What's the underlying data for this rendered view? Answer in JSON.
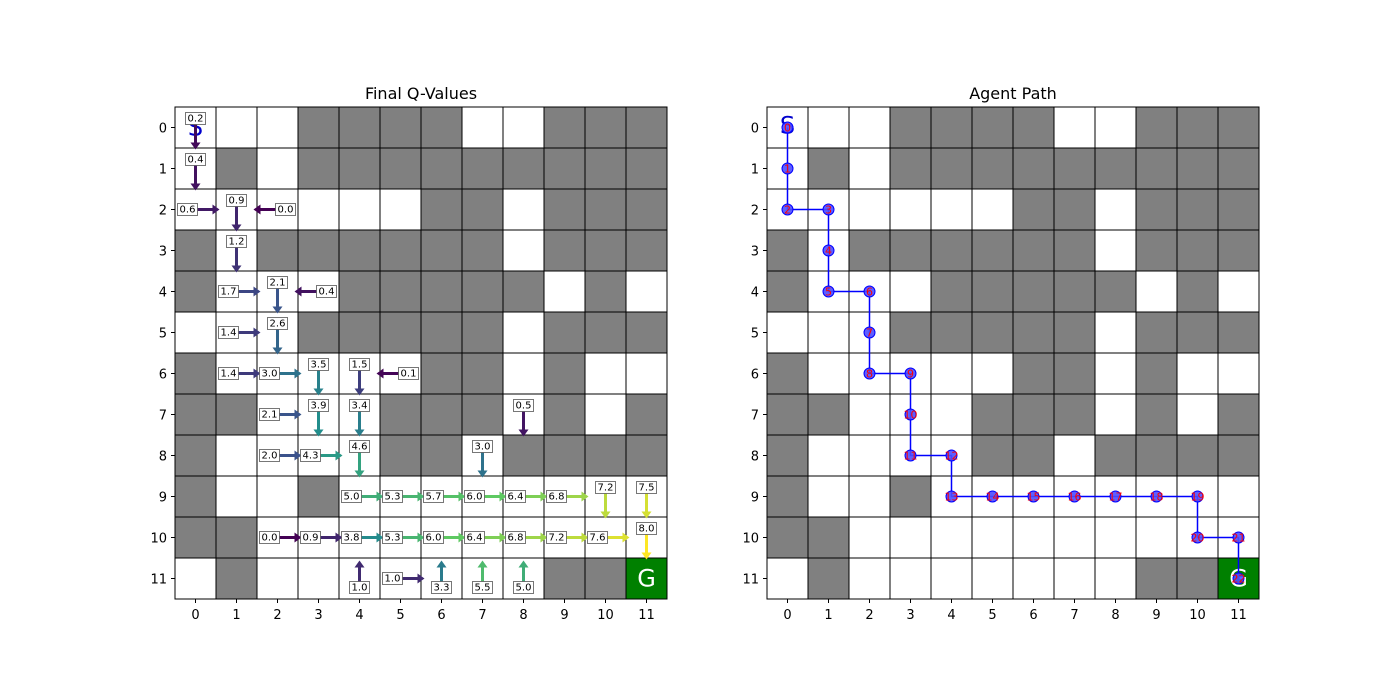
{
  "chart_data": [
    {
      "type": "heatmap",
      "title": "Final Q-Values",
      "xlabel": "",
      "ylabel": "",
      "x_ticks": [
        "0",
        "1",
        "2",
        "3",
        "4",
        "5",
        "6",
        "7",
        "8",
        "9",
        "10",
        "11"
      ],
      "y_ticks": [
        "0",
        "1",
        "2",
        "3",
        "4",
        "5",
        "6",
        "7",
        "8",
        "9",
        "10",
        "11"
      ],
      "grid_rows": 12,
      "grid_cols": 12,
      "walls": [
        [
          0,
          3
        ],
        [
          0,
          4
        ],
        [
          0,
          5
        ],
        [
          0,
          6
        ],
        [
          0,
          9
        ],
        [
          0,
          10
        ],
        [
          0,
          11
        ],
        [
          1,
          1
        ],
        [
          1,
          3
        ],
        [
          1,
          4
        ],
        [
          1,
          5
        ],
        [
          1,
          6
        ],
        [
          1,
          7
        ],
        [
          1,
          8
        ],
        [
          1,
          9
        ],
        [
          1,
          10
        ],
        [
          1,
          11
        ],
        [
          2,
          6
        ],
        [
          2,
          7
        ],
        [
          2,
          9
        ],
        [
          2,
          10
        ],
        [
          2,
          11
        ],
        [
          3,
          0
        ],
        [
          3,
          2
        ],
        [
          3,
          3
        ],
        [
          3,
          4
        ],
        [
          3,
          5
        ],
        [
          3,
          6
        ],
        [
          3,
          7
        ],
        [
          3,
          9
        ],
        [
          3,
          10
        ],
        [
          3,
          11
        ],
        [
          4,
          0
        ],
        [
          4,
          4
        ],
        [
          4,
          5
        ],
        [
          4,
          6
        ],
        [
          4,
          7
        ],
        [
          4,
          8
        ],
        [
          4,
          10
        ],
        [
          5,
          3
        ],
        [
          5,
          4
        ],
        [
          5,
          5
        ],
        [
          5,
          6
        ],
        [
          5,
          7
        ],
        [
          5,
          9
        ],
        [
          5,
          10
        ],
        [
          5,
          11
        ],
        [
          6,
          0
        ],
        [
          6,
          6
        ],
        [
          6,
          7
        ],
        [
          6,
          9
        ],
        [
          7,
          0
        ],
        [
          7,
          1
        ],
        [
          7,
          5
        ],
        [
          7,
          6
        ],
        [
          7,
          7
        ],
        [
          7,
          9
        ],
        [
          7,
          11
        ],
        [
          8,
          0
        ],
        [
          8,
          5
        ],
        [
          8,
          6
        ],
        [
          8,
          8
        ],
        [
          8,
          9
        ],
        [
          8,
          10
        ],
        [
          8,
          11
        ],
        [
          9,
          0
        ],
        [
          9,
          3
        ],
        [
          10,
          0
        ],
        [
          10,
          1
        ],
        [
          11,
          1
        ],
        [
          11,
          9
        ],
        [
          11,
          10
        ]
      ],
      "start": {
        "row": 0,
        "col": 0,
        "label": "S"
      },
      "goal": {
        "row": 11,
        "col": 11,
        "label": "G"
      },
      "arrows": [
        {
          "row": 0,
          "col": 0,
          "dir": "down",
          "value": "0.2"
        },
        {
          "row": 1,
          "col": 0,
          "dir": "down",
          "value": "0.4"
        },
        {
          "row": 2,
          "col": 0,
          "dir": "right",
          "value": "0.6"
        },
        {
          "row": 2,
          "col": 1,
          "dir": "down",
          "value": "0.9"
        },
        {
          "row": 2,
          "col": 2,
          "dir": "left",
          "value": "0.0"
        },
        {
          "row": 3,
          "col": 1,
          "dir": "down",
          "value": "1.2"
        },
        {
          "row": 4,
          "col": 1,
          "dir": "right",
          "value": "1.7"
        },
        {
          "row": 4,
          "col": 2,
          "dir": "down",
          "value": "2.1"
        },
        {
          "row": 4,
          "col": 3,
          "dir": "left",
          "value": "0.4"
        },
        {
          "row": 5,
          "col": 1,
          "dir": "right",
          "value": "1.4"
        },
        {
          "row": 5,
          "col": 2,
          "dir": "down",
          "value": "2.6"
        },
        {
          "row": 6,
          "col": 1,
          "dir": "right",
          "value": "1.4"
        },
        {
          "row": 6,
          "col": 2,
          "dir": "right",
          "value": "3.0"
        },
        {
          "row": 6,
          "col": 3,
          "dir": "down",
          "value": "3.5"
        },
        {
          "row": 6,
          "col": 4,
          "dir": "down",
          "value": "1.5"
        },
        {
          "row": 6,
          "col": 5,
          "dir": "left",
          "value": "0.1"
        },
        {
          "row": 7,
          "col": 2,
          "dir": "right",
          "value": "2.1"
        },
        {
          "row": 7,
          "col": 3,
          "dir": "down",
          "value": "3.9"
        },
        {
          "row": 7,
          "col": 4,
          "dir": "down",
          "value": "3.4"
        },
        {
          "row": 7,
          "col": 8,
          "dir": "down",
          "value": "0.5"
        },
        {
          "row": 8,
          "col": 2,
          "dir": "right",
          "value": "2.0"
        },
        {
          "row": 8,
          "col": 3,
          "dir": "right",
          "value": "4.3"
        },
        {
          "row": 8,
          "col": 4,
          "dir": "down",
          "value": "4.6"
        },
        {
          "row": 8,
          "col": 7,
          "dir": "down",
          "value": "3.0"
        },
        {
          "row": 9,
          "col": 4,
          "dir": "right",
          "value": "5.0"
        },
        {
          "row": 9,
          "col": 5,
          "dir": "right",
          "value": "5.3"
        },
        {
          "row": 9,
          "col": 6,
          "dir": "right",
          "value": "5.7"
        },
        {
          "row": 9,
          "col": 7,
          "dir": "right",
          "value": "6.0"
        },
        {
          "row": 9,
          "col": 8,
          "dir": "right",
          "value": "6.4"
        },
        {
          "row": 9,
          "col": 9,
          "dir": "right",
          "value": "6.8"
        },
        {
          "row": 9,
          "col": 10,
          "dir": "down",
          "value": "7.2"
        },
        {
          "row": 9,
          "col": 11,
          "dir": "down",
          "value": "7.5"
        },
        {
          "row": 10,
          "col": 2,
          "dir": "right",
          "value": "0.0"
        },
        {
          "row": 10,
          "col": 3,
          "dir": "right",
          "value": "0.9"
        },
        {
          "row": 10,
          "col": 4,
          "dir": "right",
          "value": "3.8"
        },
        {
          "row": 10,
          "col": 5,
          "dir": "right",
          "value": "5.3"
        },
        {
          "row": 10,
          "col": 6,
          "dir": "right",
          "value": "6.0"
        },
        {
          "row": 10,
          "col": 7,
          "dir": "right",
          "value": "6.4"
        },
        {
          "row": 10,
          "col": 8,
          "dir": "right",
          "value": "6.8"
        },
        {
          "row": 10,
          "col": 9,
          "dir": "right",
          "value": "7.2"
        },
        {
          "row": 10,
          "col": 10,
          "dir": "right",
          "value": "7.6"
        },
        {
          "row": 10,
          "col": 11,
          "dir": "down",
          "value": "8.0"
        },
        {
          "row": 11,
          "col": 4,
          "dir": "up",
          "value": "1.0"
        },
        {
          "row": 11,
          "col": 5,
          "dir": "right",
          "value": "1.0"
        },
        {
          "row": 11,
          "col": 6,
          "dir": "up",
          "value": "3.3"
        },
        {
          "row": 11,
          "col": 7,
          "dir": "up",
          "value": "5.5"
        },
        {
          "row": 11,
          "col": 8,
          "dir": "up",
          "value": "5.0"
        }
      ]
    },
    {
      "type": "line",
      "title": "Agent Path",
      "xlabel": "",
      "ylabel": "",
      "x_ticks": [
        "0",
        "1",
        "2",
        "3",
        "4",
        "5",
        "6",
        "7",
        "8",
        "9",
        "10",
        "11"
      ],
      "y_ticks": [
        "0",
        "1",
        "2",
        "3",
        "4",
        "5",
        "6",
        "7",
        "8",
        "9",
        "10",
        "11"
      ],
      "grid_rows": 12,
      "grid_cols": 12,
      "start": {
        "row": 0,
        "col": 0,
        "label": "S"
      },
      "goal": {
        "row": 11,
        "col": 11,
        "label": "G"
      },
      "path": [
        {
          "row": 0,
          "col": 0,
          "step": "0"
        },
        {
          "row": 1,
          "col": 0,
          "step": "1"
        },
        {
          "row": 2,
          "col": 0,
          "step": "2"
        },
        {
          "row": 2,
          "col": 1,
          "step": "3"
        },
        {
          "row": 3,
          "col": 1,
          "step": "4"
        },
        {
          "row": 4,
          "col": 1,
          "step": "5"
        },
        {
          "row": 4,
          "col": 2,
          "step": "6"
        },
        {
          "row": 5,
          "col": 2,
          "step": "7"
        },
        {
          "row": 6,
          "col": 2,
          "step": "8"
        },
        {
          "row": 6,
          "col": 3,
          "step": "9"
        },
        {
          "row": 7,
          "col": 3,
          "step": "10"
        },
        {
          "row": 8,
          "col": 3,
          "step": "11"
        },
        {
          "row": 8,
          "col": 4,
          "step": "12"
        },
        {
          "row": 9,
          "col": 4,
          "step": "13"
        },
        {
          "row": 9,
          "col": 5,
          "step": "14"
        },
        {
          "row": 9,
          "col": 6,
          "step": "15"
        },
        {
          "row": 9,
          "col": 7,
          "step": "16"
        },
        {
          "row": 9,
          "col": 8,
          "step": "17"
        },
        {
          "row": 9,
          "col": 9,
          "step": "18"
        },
        {
          "row": 9,
          "col": 10,
          "step": "19"
        },
        {
          "row": 10,
          "col": 10,
          "step": "20"
        },
        {
          "row": 10,
          "col": 11,
          "step": "21"
        },
        {
          "row": 11,
          "col": 11,
          "step": "22"
        }
      ]
    }
  ],
  "colors": {
    "wall": "#808080",
    "free": "#ffffff",
    "gridline": "#000000",
    "goal_fill": "#008000",
    "start_text": "#0000cc",
    "goal_text": "#ffffff",
    "path_line": "#0000ff",
    "path_marker": "#4d4dff",
    "step_text": "#ff0000",
    "arrow_colormap": [
      "#440154",
      "#3b528b",
      "#21918c",
      "#5ec962",
      "#fde725"
    ]
  }
}
